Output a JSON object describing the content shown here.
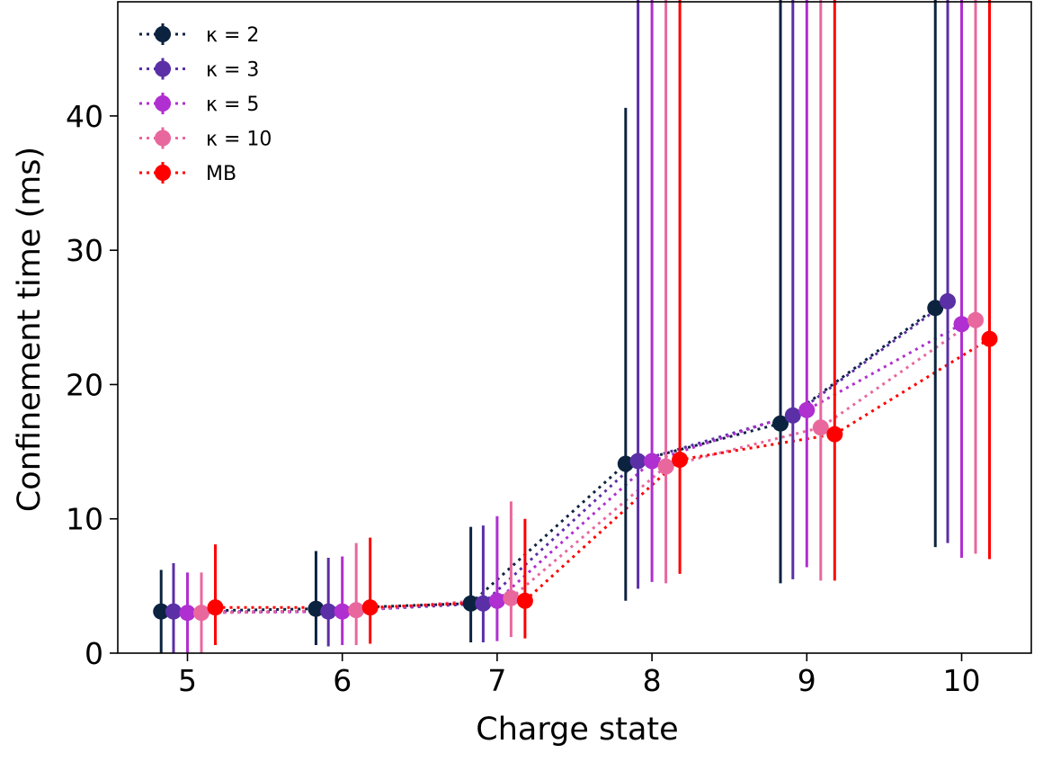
{
  "chart_data": {
    "type": "scatter",
    "xlabel": "Charge state",
    "ylabel": "Confinement time (ms)",
    "x": [
      5,
      6,
      7,
      8,
      9,
      10
    ],
    "xlim": [
      4.55,
      10.45
    ],
    "ylim": [
      0,
      48.5
    ],
    "xticks": [
      "5",
      "6",
      "7",
      "8",
      "9",
      "10"
    ],
    "yticks": [
      "0",
      "10",
      "20",
      "30",
      "40"
    ],
    "grid": false,
    "legend_position": "top-left",
    "line_style": "dotted",
    "error_bars": true,
    "series": [
      {
        "name": "κ = 2",
        "color": "#0c2340",
        "offset": -0.17,
        "values": [
          3.1,
          3.3,
          3.7,
          14.1,
          17.1,
          25.7
        ],
        "err_low": [
          3.1,
          2.7,
          2.9,
          10.2,
          11.9,
          17.8
        ],
        "err_high": [
          3.1,
          4.3,
          5.7,
          26.5,
          34.5,
          44.8
        ]
      },
      {
        "name": "κ = 3",
        "color": "#5b2fa6",
        "offset": -0.09,
        "values": [
          3.1,
          3.1,
          3.7,
          14.3,
          17.7,
          26.2
        ],
        "err_low": [
          3.1,
          2.6,
          2.9,
          9.5,
          12.2,
          18.0
        ],
        "err_high": [
          3.6,
          4.0,
          5.8,
          36.7,
          35.2,
          46.9
        ]
      },
      {
        "name": "κ = 5",
        "color": "#b02fd0",
        "offset": 0.0,
        "values": [
          3.0,
          3.1,
          3.9,
          14.3,
          18.1,
          24.5
        ],
        "err_low": [
          3.0,
          2.5,
          3.0,
          9.0,
          11.7,
          17.4
        ],
        "err_high": [
          3.0,
          4.1,
          6.3,
          37.8,
          36.7,
          42.9
        ]
      },
      {
        "name": "κ = 10",
        "color": "#e8689e",
        "offset": 0.09,
        "values": [
          3.0,
          3.2,
          4.1,
          13.9,
          16.8,
          24.8
        ],
        "err_low": [
          3.0,
          2.6,
          2.9,
          8.7,
          11.4,
          17.4
        ],
        "err_high": [
          3.0,
          5.0,
          7.2,
          42.1,
          33.0,
          45.0
        ]
      },
      {
        "name": "MB",
        "color": "#ff0000",
        "offset": 0.18,
        "values": [
          3.4,
          3.4,
          3.9,
          14.4,
          16.3,
          23.4
        ],
        "err_low": [
          2.8,
          2.7,
          2.8,
          8.5,
          10.9,
          16.4
        ],
        "err_high": [
          4.7,
          5.2,
          6.1,
          37.5,
          32.5,
          42.6
        ]
      }
    ]
  }
}
